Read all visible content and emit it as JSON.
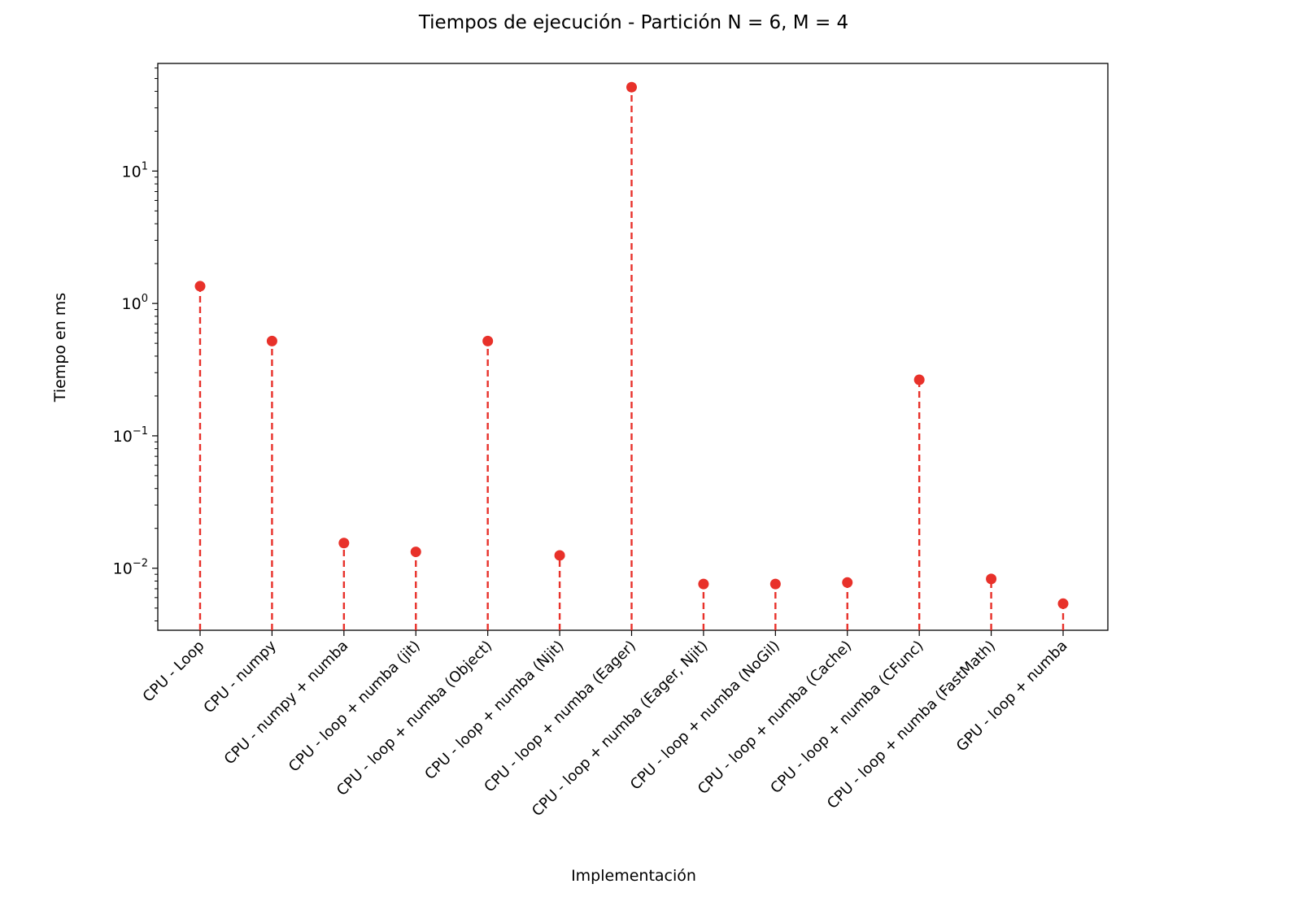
{
  "chart_data": {
    "type": "stem",
    "title": "Tiempos de ejecución - Partición N = 6, M = 4",
    "xlabel": "Implementación",
    "ylabel": "Tiempo en ms",
    "yscale": "log",
    "ylim": [
      0.0034,
      65
    ],
    "yticks": [
      {
        "value": 0.01,
        "base": "10",
        "exp": "−2"
      },
      {
        "value": 0.1,
        "base": "10",
        "exp": "−1"
      },
      {
        "value": 1,
        "base": "10",
        "exp": "0"
      },
      {
        "value": 10,
        "base": "10",
        "exp": "1"
      }
    ],
    "categories": [
      "CPU - Loop",
      "CPU - numpy",
      "CPU - numpy + numba",
      "CPU - loop + numba (jit)",
      "CPU - loop + numba (Object)",
      "CPU - loop + numba (Njit)",
      "CPU - loop + numba (Eager)",
      "CPU - loop + numba (Eager, Njit)",
      "CPU - loop + numba (NoGil)",
      "CPU - loop + numba (Cache)",
      "CPU - loop + numba (CFunc)",
      "CPU - loop + numba (FastMath)",
      "GPU - loop + numba"
    ],
    "values": [
      1.35,
      0.52,
      0.0155,
      0.0133,
      0.52,
      0.0125,
      43.0,
      0.0076,
      0.0076,
      0.0078,
      0.265,
      0.0083,
      0.0054
    ],
    "color": "#e8312a",
    "grid": false,
    "legend": false
  }
}
